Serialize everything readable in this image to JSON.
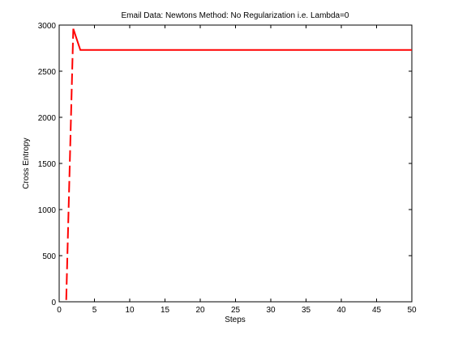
{
  "chart_data": {
    "type": "line",
    "title": "Email Data: Newtons Method: No Regularization i.e. Lambda=0",
    "xlabel": "Steps",
    "ylabel": "Cross Entropy",
    "xlim": [
      0,
      50
    ],
    "ylim": [
      0,
      3000
    ],
    "xticks": [
      0,
      5,
      10,
      15,
      20,
      25,
      30,
      35,
      40,
      45,
      50
    ],
    "yticks": [
      0,
      500,
      1000,
      1500,
      2000,
      2500,
      3000
    ],
    "grid": false,
    "legend": "none",
    "series": [
      {
        "color": "#ff0000",
        "line_style": "dashed-solid",
        "x": [
          1,
          2,
          3,
          4,
          5,
          10,
          15,
          20,
          25,
          30,
          35,
          40,
          45,
          50
        ],
        "y": [
          20,
          2960,
          2730,
          2730,
          2730,
          2730,
          2730,
          2730,
          2730,
          2730,
          2730,
          2730,
          2730,
          2730
        ]
      }
    ]
  }
}
